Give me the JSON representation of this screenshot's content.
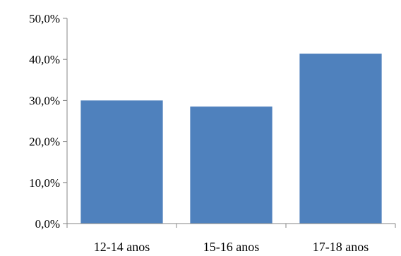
{
  "chart_data": {
    "type": "bar",
    "categories": [
      "12-14 anos",
      "15-16 anos",
      "17-18 anos"
    ],
    "values": [
      30.0,
      28.5,
      41.4
    ],
    "ylim": [
      0,
      50
    ],
    "y_ticks": [
      0,
      10,
      20,
      30,
      40,
      50
    ],
    "y_tick_labels": [
      "0,0%",
      "10,0%",
      "20,0%",
      "30,0%",
      "40,0%",
      "50,0%"
    ],
    "title": "",
    "xlabel": "",
    "ylabel": "",
    "grid": false,
    "legend": "none",
    "bar_color": "#4F81BD"
  }
}
